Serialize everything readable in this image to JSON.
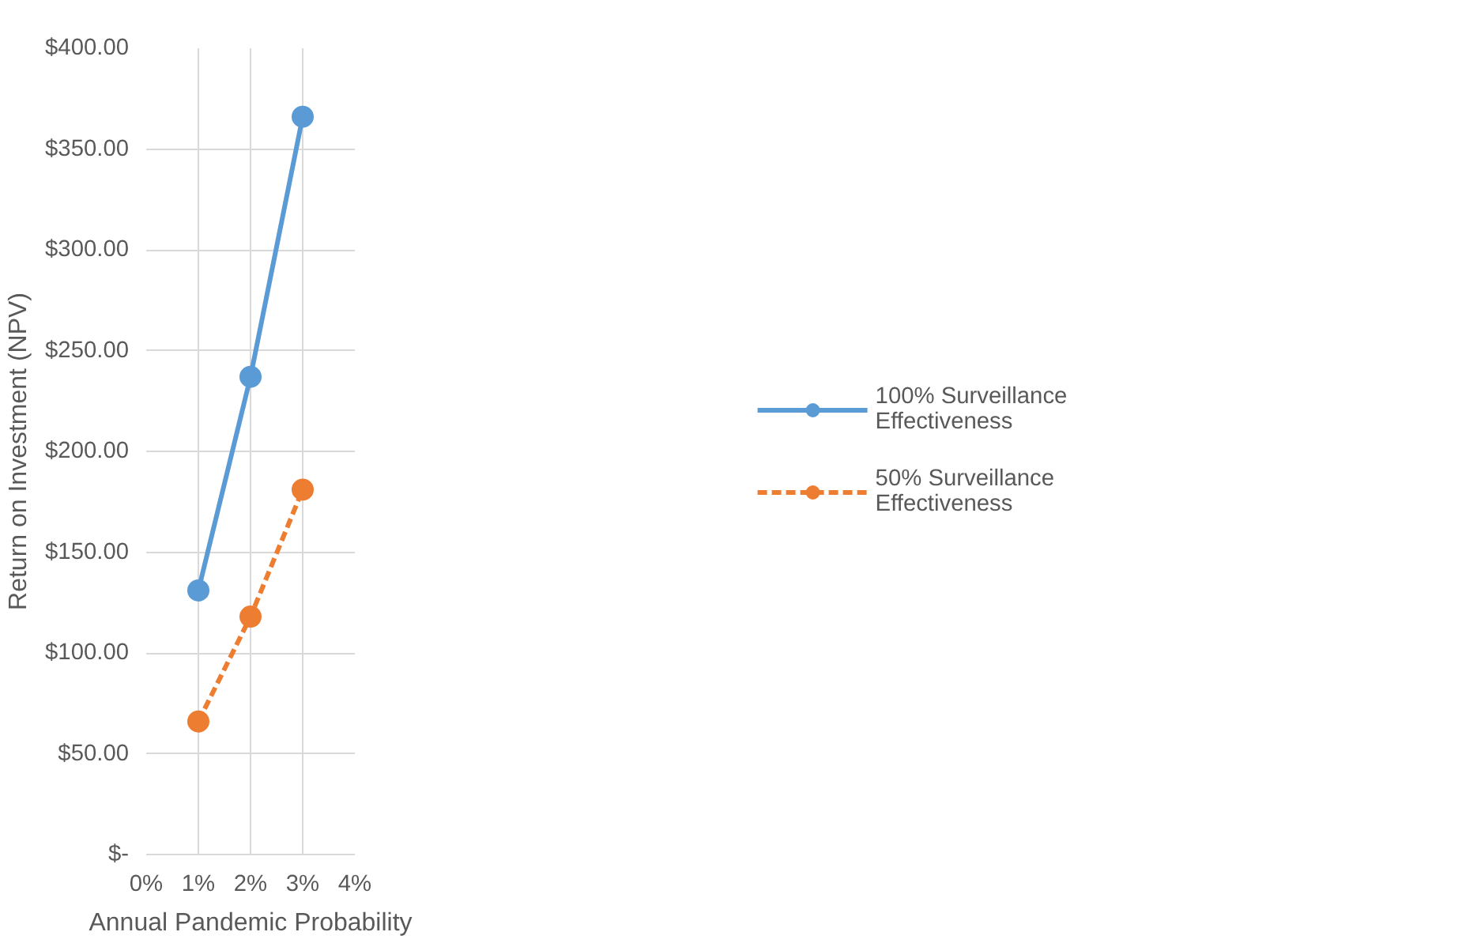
{
  "chart_data": {
    "type": "line",
    "xlabel": "Annual Pandemic Probability",
    "ylabel": "Return on Investment (NPV)",
    "x": [
      1,
      2,
      3
    ],
    "series": [
      {
        "name": "100% Surveillance Effectiveness",
        "color": "#5b9bd5",
        "values": [
          131,
          237,
          366
        ],
        "line_style": "solid"
      },
      {
        "name": "50% Surveillance Effectiveness",
        "color": "#ed7d31",
        "values": [
          66,
          118,
          181
        ],
        "line_style": "dashed"
      }
    ],
    "xlim": [
      0,
      4
    ],
    "xticks": [
      {
        "value": 0,
        "label": "0%"
      },
      {
        "value": 1,
        "label": "1%"
      },
      {
        "value": 2,
        "label": "2%"
      },
      {
        "value": 3,
        "label": "3%"
      },
      {
        "value": 4,
        "label": "4%"
      }
    ],
    "ylim": [
      0,
      400
    ],
    "yticks": [
      {
        "value": 0,
        "label": "$-"
      },
      {
        "value": 50,
        "label": "$50.00"
      },
      {
        "value": 100,
        "label": "$100.00"
      },
      {
        "value": 150,
        "label": "$150.00"
      },
      {
        "value": 200,
        "label": "$200.00"
      },
      {
        "value": 250,
        "label": "$250.00"
      },
      {
        "value": 300,
        "label": "$300.00"
      },
      {
        "value": 350,
        "label": "$350.00"
      },
      {
        "value": 400,
        "label": "$400.00"
      }
    ],
    "grid": true,
    "legend": "right",
    "marker": "circle"
  }
}
